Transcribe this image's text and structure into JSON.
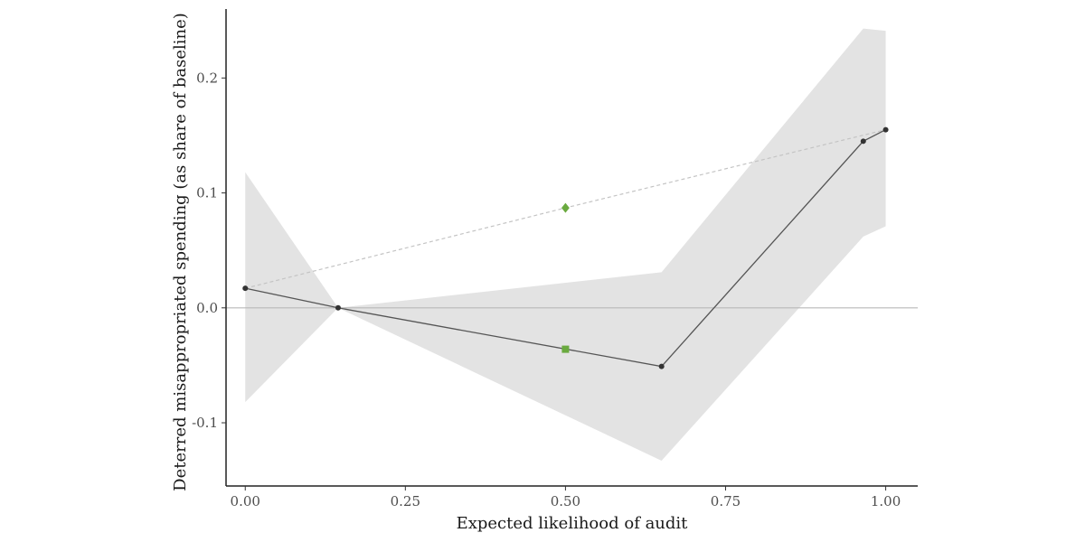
{
  "chart_data": {
    "type": "line",
    "title": "",
    "xlabel": "Expected likelihood of audit",
    "ylabel": "Deterred misappropriated spending (as share of baseline)",
    "xlim": [
      -0.03,
      1.05
    ],
    "ylim": [
      -0.155,
      0.26
    ],
    "x_ticks": [
      0.0,
      0.25,
      0.5,
      0.75,
      1.0
    ],
    "x_tick_labels": [
      "0.00",
      "0.25",
      "0.50",
      "0.75",
      "1.00"
    ],
    "y_ticks": [
      -0.1,
      0.0,
      0.1,
      0.2
    ],
    "y_tick_labels": [
      "-0.1",
      "0.0",
      "0.1",
      "0.2"
    ],
    "reference_line_y": 0.0,
    "grid": false,
    "legend": "none",
    "colors": {
      "estimate_line": "#555555",
      "confidence_band": "#e3e3e3",
      "reference_line": "#b8b8b8",
      "dashed_line": "#c4c4c4",
      "green_marker": "#6aaa3f"
    },
    "series": [
      {
        "kind": "ribbon",
        "x": [
          0.0,
          0.145,
          0.65,
          0.965,
          1.0
        ],
        "lower": [
          -0.082,
          0.0,
          -0.133,
          0.062,
          0.071
        ],
        "upper": [
          0.118,
          0.0,
          0.031,
          0.243,
          0.241
        ]
      },
      {
        "kind": "line",
        "x": [
          0.0,
          0.145,
          0.65,
          0.965,
          1.0
        ],
        "y": [
          0.017,
          0.0,
          -0.051,
          0.145,
          0.155
        ]
      },
      {
        "kind": "dashed",
        "x": [
          0.0,
          0.5,
          1.0
        ],
        "y": [
          0.017,
          0.087,
          0.155
        ]
      },
      {
        "kind": "points",
        "marker": "diamond",
        "x": [
          0.5
        ],
        "y": [
          0.087
        ]
      },
      {
        "kind": "points",
        "marker": "square",
        "x": [
          0.5
        ],
        "y": [
          -0.036
        ]
      }
    ]
  }
}
